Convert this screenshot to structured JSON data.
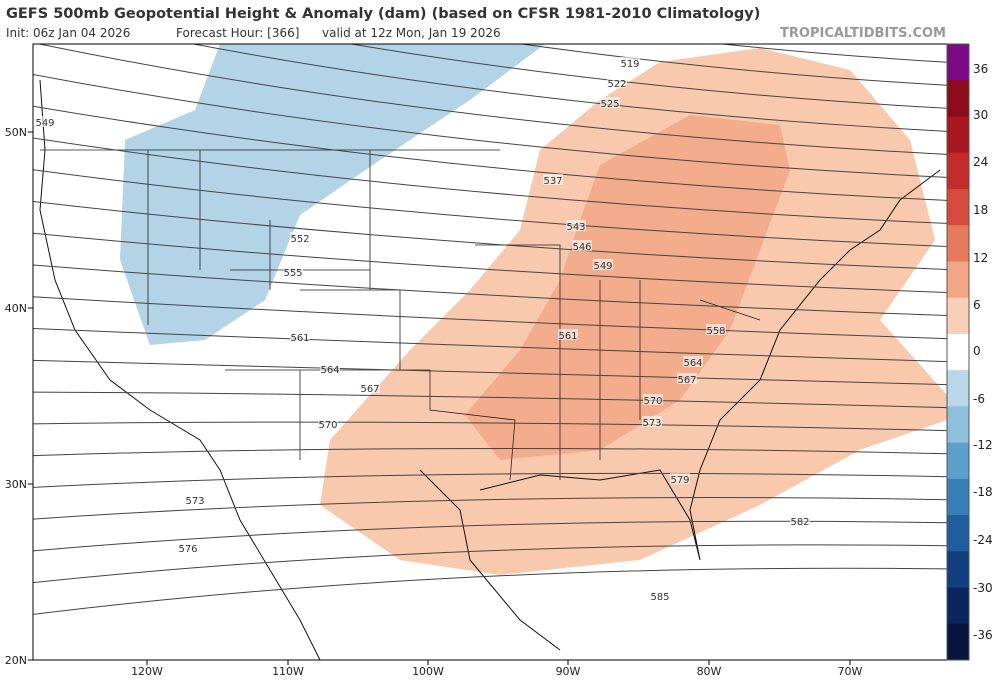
{
  "header": {
    "title": "GEFS 500mb Geopotential Height & Anomaly (dam) (based on CFSR 1981-2010 Climatology)",
    "init": "Init: 06z Jan 04 2026",
    "forecast_hour": "Forecast Hour: [366]",
    "valid": "valid at 12z Mon, Jan 19 2026",
    "source": "TROPICALTIDBITS.COM"
  },
  "map": {
    "latitude_labels": [
      "50N",
      "40N",
      "30N",
      "20N"
    ],
    "longitude_labels": [
      "120W",
      "110W",
      "100W",
      "90W",
      "80W",
      "70W"
    ],
    "contour_labels": [
      519,
      522,
      525,
      537,
      543,
      546,
      549,
      552,
      555,
      561,
      564,
      567,
      570,
      573,
      576,
      558,
      564,
      567,
      570,
      573,
      579,
      582,
      585,
      561,
      549
    ]
  },
  "colorbar": {
    "ticks": [
      36,
      30,
      24,
      18,
      12,
      6,
      0,
      -6,
      -12,
      -18,
      -24,
      -30,
      -36
    ]
  }
}
